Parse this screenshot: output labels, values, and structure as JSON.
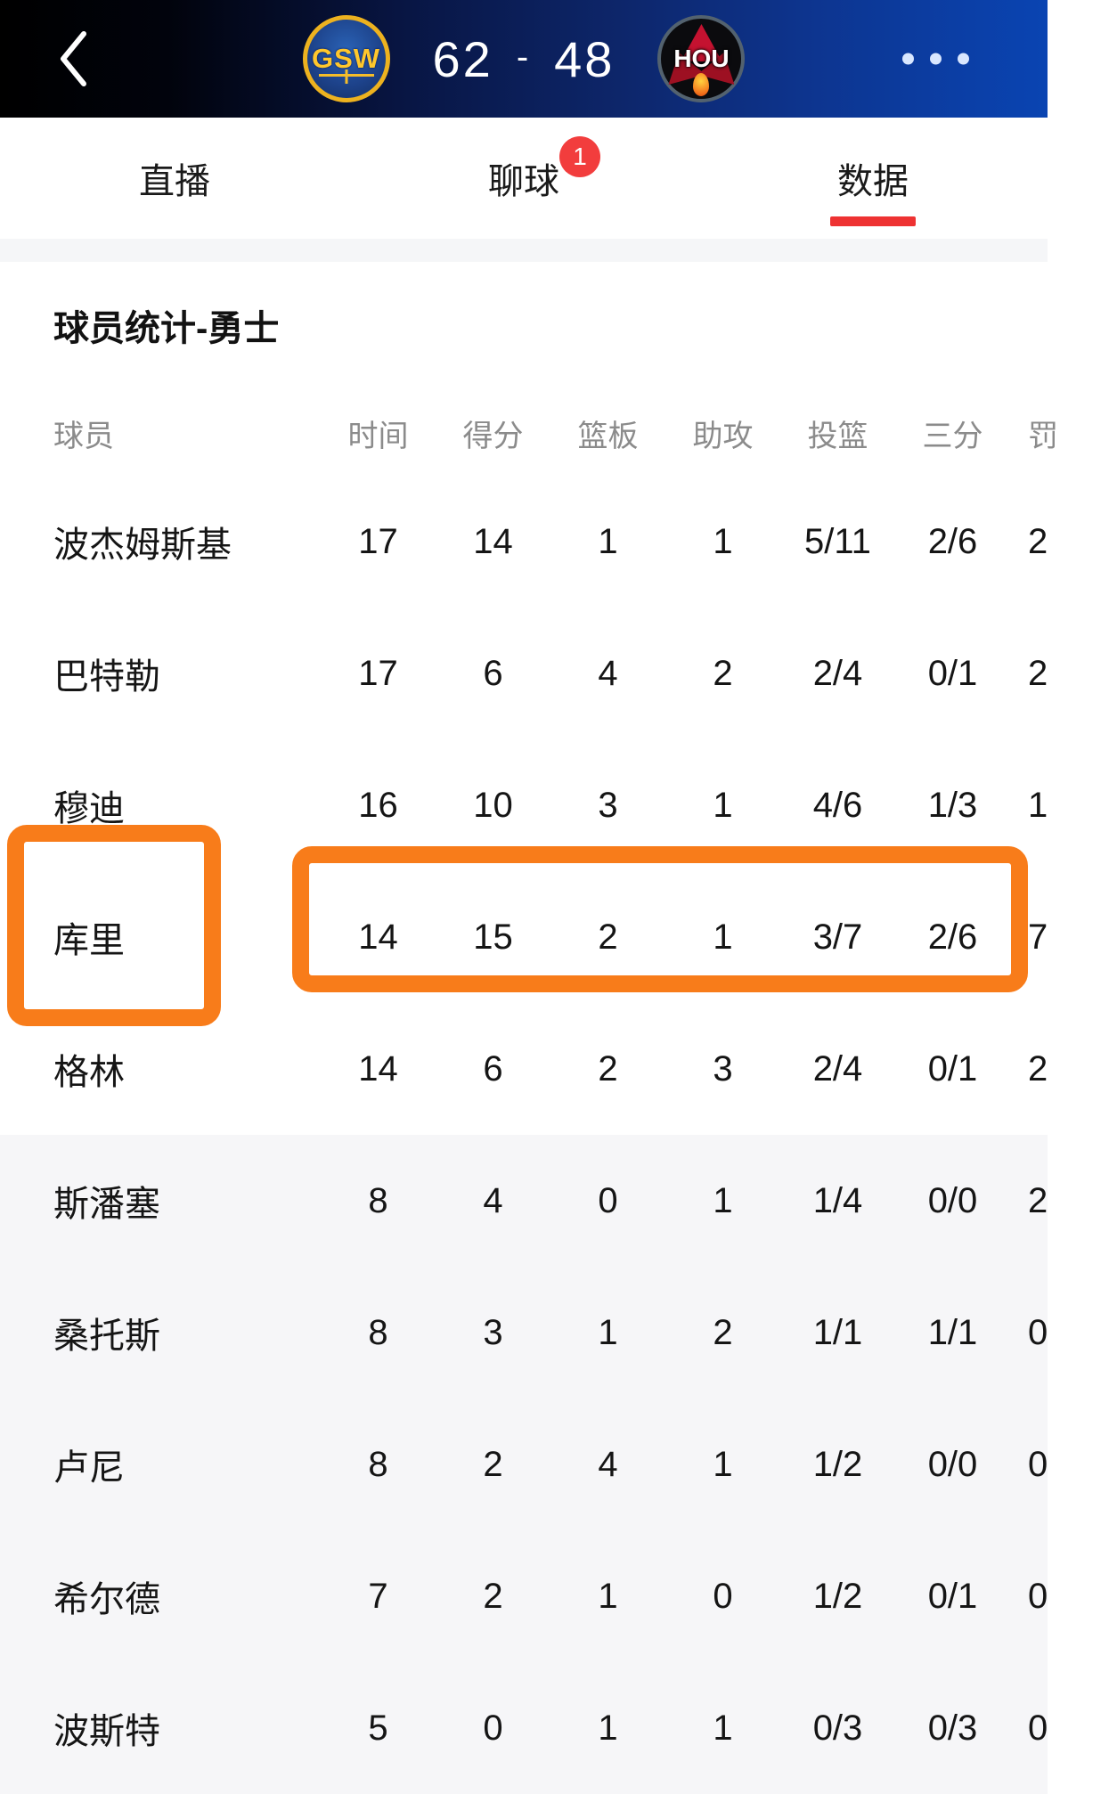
{
  "topbar": {
    "teams": {
      "home": "GSW",
      "away": "HOU"
    },
    "score": {
      "home": "62",
      "separator": "-",
      "away": "48"
    },
    "icons": {
      "back": "chevron-left-icon",
      "more": "ellipsis-icon"
    },
    "colors": {
      "gsw_blue": "#1d428a",
      "gsw_gold": "#ffc72c",
      "hou_red": "#c41230",
      "bar_blue": "#0a44b2"
    }
  },
  "tabs": {
    "items": [
      {
        "label": "直播",
        "active": false
      },
      {
        "label": "聊球",
        "active": false,
        "badge": "1"
      },
      {
        "label": "数据",
        "active": true
      }
    ],
    "underline_color": "#ee3232",
    "badge_color": "#f23d3d"
  },
  "section": {
    "title": "球员统计-勇士"
  },
  "stats_table": {
    "columns": [
      "球员",
      "时间",
      "得分",
      "篮板",
      "助攻",
      "投篮",
      "三分",
      "罚"
    ],
    "rows": [
      {
        "name": "波杰姆斯基",
        "cells": [
          "17",
          "14",
          "1",
          "1",
          "5/11",
          "2/6",
          "2"
        ],
        "highlighted": false
      },
      {
        "name": "巴特勒",
        "cells": [
          "17",
          "6",
          "4",
          "2",
          "2/4",
          "0/1",
          "2"
        ],
        "highlighted": false
      },
      {
        "name": "穆迪",
        "cells": [
          "16",
          "10",
          "3",
          "1",
          "4/6",
          "1/3",
          "1"
        ],
        "highlighted": false
      },
      {
        "name": "库里",
        "cells": [
          "14",
          "15",
          "2",
          "1",
          "3/7",
          "2/6",
          "7"
        ],
        "highlighted": true
      },
      {
        "name": "格林",
        "cells": [
          "14",
          "6",
          "2",
          "3",
          "2/4",
          "0/1",
          "2"
        ],
        "highlighted": false
      },
      {
        "name": "斯潘塞",
        "cells": [
          "8",
          "4",
          "0",
          "1",
          "1/4",
          "0/0",
          "2"
        ],
        "highlighted": false
      },
      {
        "name": "桑托斯",
        "cells": [
          "8",
          "3",
          "1",
          "2",
          "1/1",
          "1/1",
          "0"
        ],
        "highlighted": false
      },
      {
        "name": "卢尼",
        "cells": [
          "8",
          "2",
          "4",
          "1",
          "1/2",
          "0/0",
          "0"
        ],
        "highlighted": false
      },
      {
        "name": "希尔德",
        "cells": [
          "7",
          "2",
          "1",
          "0",
          "1/2",
          "0/1",
          "0"
        ],
        "highlighted": false
      },
      {
        "name": "波斯特",
        "cells": [
          "5",
          "0",
          "1",
          "1",
          "0/3",
          "0/3",
          "0"
        ],
        "highlighted": false
      }
    ],
    "highlight_color": "#f87c1a",
    "bench_background": "#f6f6f8"
  }
}
